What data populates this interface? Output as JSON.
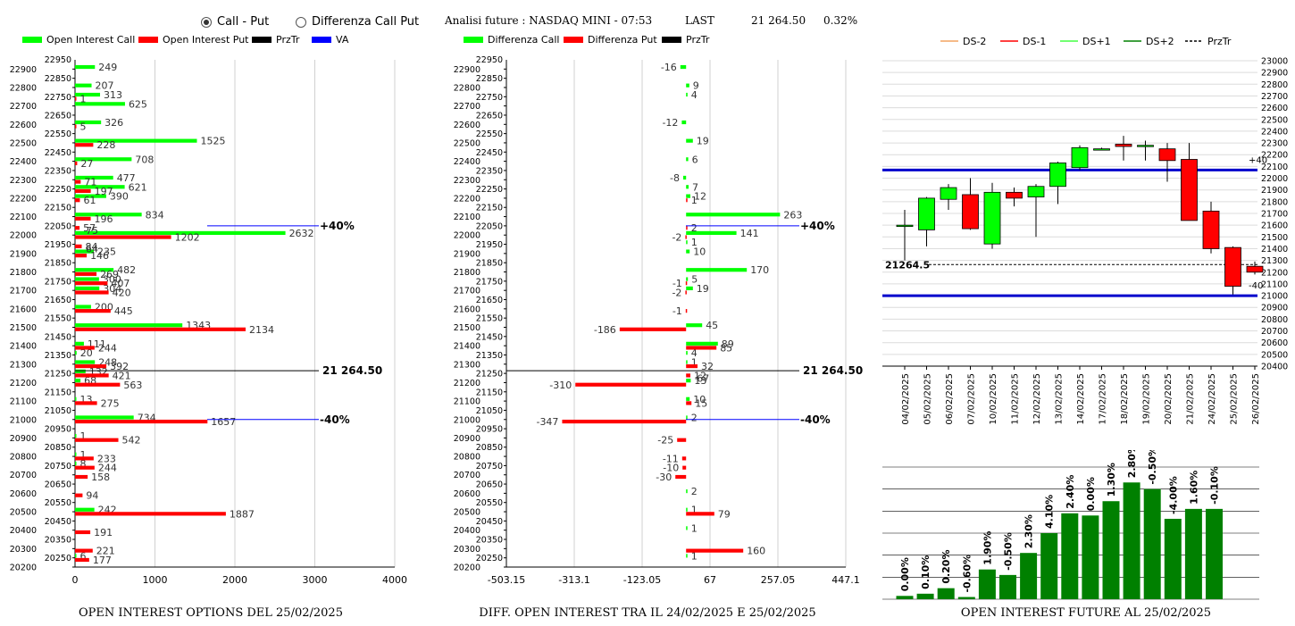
{
  "header": {
    "radio_call_put": "Call - Put",
    "radio_diff": "Differenza Call Put",
    "title": "Analisi future : NASDAQ MINI - 07:53",
    "last_label": "LAST",
    "last_value": "21 264.50",
    "change": "0.32%"
  },
  "colors": {
    "green": "#00ff00",
    "red": "#ff0000",
    "black": "#000000",
    "blue": "#0000ff",
    "darkgreen": "#008000",
    "salmon": "#f4a460"
  },
  "chart_data": [
    {
      "id": "oi",
      "type": "bar",
      "caption": "OPEN INTEREST OPTIONS DEL 25/02/2025",
      "legend": [
        "Open Interest Call",
        "Open Interest Put",
        "PrzTr",
        "VA"
      ],
      "y_ticks": [
        22900,
        22850,
        22800,
        22750,
        22700,
        22650,
        22600,
        22550,
        22500,
        22450,
        22400,
        22350,
        22300,
        22250,
        22200,
        22150,
        22100,
        22050,
        22000,
        21950,
        21900,
        21850,
        21800,
        21750,
        21700,
        21650,
        21600,
        21550,
        21500,
        21450,
        21400,
        21350,
        21300,
        21250,
        21200,
        21150,
        21100,
        21050,
        21000,
        20950,
        20900,
        20850,
        20800,
        20750,
        20700,
        20650,
        20600,
        20550,
        20500,
        20450,
        20400,
        20350,
        20300,
        20250,
        20200
      ],
      "y_top_label": "22950",
      "x_ticks": [
        "0",
        "1000",
        "2000",
        "3000",
        "4000"
      ],
      "xlim": [
        0,
        4000
      ],
      "call": [
        {
          "strike": 22900,
          "value": 249
        },
        {
          "strike": 22800,
          "value": 207
        },
        {
          "strike": 22750,
          "value": 313
        },
        {
          "strike": 22700,
          "value": 625
        },
        {
          "strike": 22600,
          "value": 326
        },
        {
          "strike": 22500,
          "value": 1525
        },
        {
          "strike": 22400,
          "value": 708
        },
        {
          "strike": 22300,
          "value": 477
        },
        {
          "strike": 22250,
          "value": 621
        },
        {
          "strike": 22200,
          "value": 390
        },
        {
          "strike": 22100,
          "value": 834
        },
        {
          "strike": 22000,
          "value": 2632
        },
        {
          "strike": 21900,
          "value": 235
        },
        {
          "strike": 21800,
          "value": 482
        },
        {
          "strike": 21750,
          "value": 300
        },
        {
          "strike": 21700,
          "value": 304
        },
        {
          "strike": 21600,
          "value": 200
        },
        {
          "strike": 21500,
          "value": 1343
        },
        {
          "strike": 21400,
          "value": 111
        },
        {
          "strike": 21350,
          "value": 20
        },
        {
          "strike": 21300,
          "value": 248
        },
        {
          "strike": 21250,
          "value": 132
        },
        {
          "strike": 21200,
          "value": 68
        },
        {
          "strike": 21100,
          "value": 13
        },
        {
          "strike": 21000,
          "value": 734
        },
        {
          "strike": 20900,
          "value": 1
        },
        {
          "strike": 20800,
          "value": 1
        },
        {
          "strike": 20750,
          "value": 8
        },
        {
          "strike": 20500,
          "value": 242
        },
        {
          "strike": 20250,
          "value": 6
        }
      ],
      "put": [
        {
          "strike": 22750,
          "value": 1
        },
        {
          "strike": 22600,
          "value": 5
        },
        {
          "strike": 22500,
          "value": 228
        },
        {
          "strike": 22400,
          "value": 27
        },
        {
          "strike": 22300,
          "value": 71
        },
        {
          "strike": 22250,
          "value": 197
        },
        {
          "strike": 22200,
          "value": 61
        },
        {
          "strike": 22100,
          "value": 196
        },
        {
          "strike": 22050,
          "value": 57
        },
        {
          "strike": 22000,
          "value": 1202
        },
        {
          "strike": 21950,
          "value": 84
        },
        {
          "strike": 21900,
          "value": 146
        },
        {
          "strike": 21800,
          "value": 269
        },
        {
          "strike": 21750,
          "value": 407
        },
        {
          "strike": 21700,
          "value": 420
        },
        {
          "strike": 21600,
          "value": 445
        },
        {
          "strike": 21500,
          "value": 2134
        },
        {
          "strike": 21400,
          "value": 244
        },
        {
          "strike": 21300,
          "value": 392
        },
        {
          "strike": 21250,
          "value": 421
        },
        {
          "strike": 21200,
          "value": 563
        },
        {
          "strike": 21100,
          "value": 275
        },
        {
          "strike": 21000,
          "value": 1657
        },
        {
          "strike": 20900,
          "value": 542
        },
        {
          "strike": 20800,
          "value": 233
        },
        {
          "strike": 20750,
          "value": 244
        },
        {
          "strike": 20700,
          "value": 158
        },
        {
          "strike": 20600,
          "value": 94
        },
        {
          "strike": 20500,
          "value": 1887
        },
        {
          "strike": 20400,
          "value": 191
        },
        {
          "strike": 20300,
          "value": 221
        },
        {
          "strike": 20250,
          "value": 177
        }
      ],
      "extra_labels": [
        {
          "strike": 22025,
          "text": "75"
        },
        {
          "strike": 21925,
          "text": "64"
        }
      ],
      "prz_line": {
        "strike": 21264.5,
        "label": "21 264.50"
      },
      "va_lines": [
        {
          "strike": 22050,
          "label": "+40%"
        },
        {
          "strike": 21000,
          "label": "-40%"
        }
      ]
    },
    {
      "id": "diff",
      "type": "bar",
      "caption": "DIFF. OPEN INTEREST TRA IL 24/02/2025 E 25/02/2025",
      "legend": [
        "Differenza Call",
        "Differenza Put",
        "PrzTr"
      ],
      "x_ticks": [
        "-503.15",
        "-313.1",
        "-123.05",
        "67",
        "257.05",
        "447.1"
      ],
      "xlim": [
        -503.15,
        447.1
      ],
      "call": [
        {
          "strike": 22900,
          "value": -16
        },
        {
          "strike": 22800,
          "value": 9
        },
        {
          "strike": 22750,
          "value": 4
        },
        {
          "strike": 22600,
          "value": -12
        },
        {
          "strike": 22500,
          "value": 19
        },
        {
          "strike": 22400,
          "value": 6
        },
        {
          "strike": 22300,
          "value": -8
        },
        {
          "strike": 22250,
          "value": 7
        },
        {
          "strike": 22200,
          "value": 12
        },
        {
          "strike": 22100,
          "value": 263
        },
        {
          "strike": 22000,
          "value": 141
        },
        {
          "strike": 21950,
          "value": 1
        },
        {
          "strike": 21900,
          "value": 10
        },
        {
          "strike": 21800,
          "value": 170
        },
        {
          "strike": 21750,
          "value": 5
        },
        {
          "strike": 21700,
          "value": 19
        },
        {
          "strike": 21500,
          "value": 45
        },
        {
          "strike": 21400,
          "value": 89
        },
        {
          "strike": 21350,
          "value": 4
        },
        {
          "strike": 21300,
          "value": 1
        },
        {
          "strike": 21200,
          "value": 13
        },
        {
          "strike": 21100,
          "value": 10
        },
        {
          "strike": 21000,
          "value": 2
        },
        {
          "strike": 20600,
          "value": 2
        },
        {
          "strike": 20500,
          "value": 1
        },
        {
          "strike": 20400,
          "value": 1
        },
        {
          "strike": 20250,
          "value": 1
        }
      ],
      "put": [
        {
          "strike": 22200,
          "value": 1
        },
        {
          "strike": 22050,
          "value": 2
        },
        {
          "strike": 22000,
          "value": -2
        },
        {
          "strike": 21750,
          "value": -1
        },
        {
          "strike": 21700,
          "value": -2
        },
        {
          "strike": 21600,
          "value": -1
        },
        {
          "strike": 21500,
          "value": -186
        },
        {
          "strike": 21400,
          "value": 85
        },
        {
          "strike": 21300,
          "value": 32
        },
        {
          "strike": 21250,
          "value": 12
        },
        {
          "strike": 21200,
          "value": -310
        },
        {
          "strike": 21100,
          "value": 15
        },
        {
          "strike": 21000,
          "value": -347
        },
        {
          "strike": 20900,
          "value": -25
        },
        {
          "strike": 20800,
          "value": -11
        },
        {
          "strike": 20750,
          "value": -10
        },
        {
          "strike": 20700,
          "value": -30
        },
        {
          "strike": 20500,
          "value": 79
        },
        {
          "strike": 20300,
          "value": 160
        }
      ],
      "extra_labels": [
        {
          "strike": 21225,
          "text": "67"
        }
      ],
      "prz_line": {
        "strike": 21264.5,
        "label": "21 264.50"
      },
      "va_lines": [
        {
          "strike": 22050,
          "label": "+40%"
        },
        {
          "strike": 21000,
          "label": "-40%"
        }
      ]
    },
    {
      "id": "candles",
      "type": "candlestick",
      "legend": [
        "DS-2",
        "DS-1",
        "DS+1",
        "DS+2",
        "PrzTr"
      ],
      "ylim": [
        20400,
        23000
      ],
      "y_ticks": [
        23000,
        22900,
        22800,
        22700,
        22600,
        22500,
        22400,
        22300,
        22200,
        22100,
        22000,
        21900,
        21800,
        21700,
        21600,
        21500,
        21400,
        21300,
        21200,
        21100,
        21000,
        20900,
        20800,
        20700,
        20600,
        20500,
        20400
      ],
      "dates": [
        "04/02/2025",
        "05/02/2025",
        "06/02/2025",
        "07/02/2025",
        "10/02/2025",
        "11/02/2025",
        "12/02/2025",
        "13/02/2025",
        "14/02/2025",
        "17/02/2025",
        "18/02/2025",
        "19/02/2025",
        "20/02/2025",
        "21/02/2025",
        "24/02/2025",
        "25/02/2025",
        "26/02/2025"
      ],
      "candles": [
        {
          "o": 21600,
          "h": 21730,
          "l": 21300,
          "c": 21600
        },
        {
          "o": 21560,
          "h": 21840,
          "l": 21420,
          "c": 21830
        },
        {
          "o": 21820,
          "h": 21950,
          "l": 21730,
          "c": 21920
        },
        {
          "o": 21860,
          "h": 22000,
          "l": 21560,
          "c": 21570
        },
        {
          "o": 21440,
          "h": 21960,
          "l": 21400,
          "c": 21880
        },
        {
          "o": 21880,
          "h": 21920,
          "l": 21760,
          "c": 21830
        },
        {
          "o": 21840,
          "h": 21950,
          "l": 21500,
          "c": 21930
        },
        {
          "o": 21930,
          "h": 22140,
          "l": 21780,
          "c": 22130
        },
        {
          "o": 22090,
          "h": 22280,
          "l": 22070,
          "c": 22260
        },
        {
          "o": 22250,
          "h": 22260,
          "l": 22240,
          "c": 22250
        },
        {
          "o": 22290,
          "h": 22360,
          "l": 22150,
          "c": 22270
        },
        {
          "o": 22270,
          "h": 22320,
          "l": 22150,
          "c": 22280
        },
        {
          "o": 22250,
          "h": 22300,
          "l": 21970,
          "c": 22150
        },
        {
          "o": 22160,
          "h": 22300,
          "l": 21650,
          "c": 21640
        },
        {
          "o": 21720,
          "h": 21800,
          "l": 21360,
          "c": 21400
        },
        {
          "o": 21410,
          "h": 21420,
          "l": 21010,
          "c": 21080
        },
        {
          "o": 21250,
          "h": 21290,
          "l": 21180,
          "c": 21200
        }
      ],
      "prz_line": {
        "value": 21264.5,
        "label": "21264.5"
      },
      "upper_line": {
        "value": 22070,
        "label": "+40"
      },
      "lower_line": {
        "value": 21000,
        "label": "-40"
      }
    },
    {
      "id": "future_oi",
      "type": "bar",
      "caption": "OPEN INTEREST FUTURE AL 25/02/2025",
      "values": [
        0.3,
        0.5,
        1.0,
        0.2,
        2.7,
        2.2,
        4.2,
        6.0,
        7.8,
        7.6,
        8.9,
        10.6,
        10.0,
        7.3,
        8.2,
        8.2
      ],
      "labels": [
        "0.00%",
        "0.10%",
        "0.20%",
        "-0.60%",
        "1.90%",
        "-0.50%",
        "2.30%",
        "4.10%",
        "2.40%",
        "0.00%",
        "1.30%",
        "2.80%",
        "-0.50%",
        "-4.00%",
        "1.60%",
        "-0.10%"
      ],
      "ylim": [
        0,
        12
      ]
    }
  ]
}
